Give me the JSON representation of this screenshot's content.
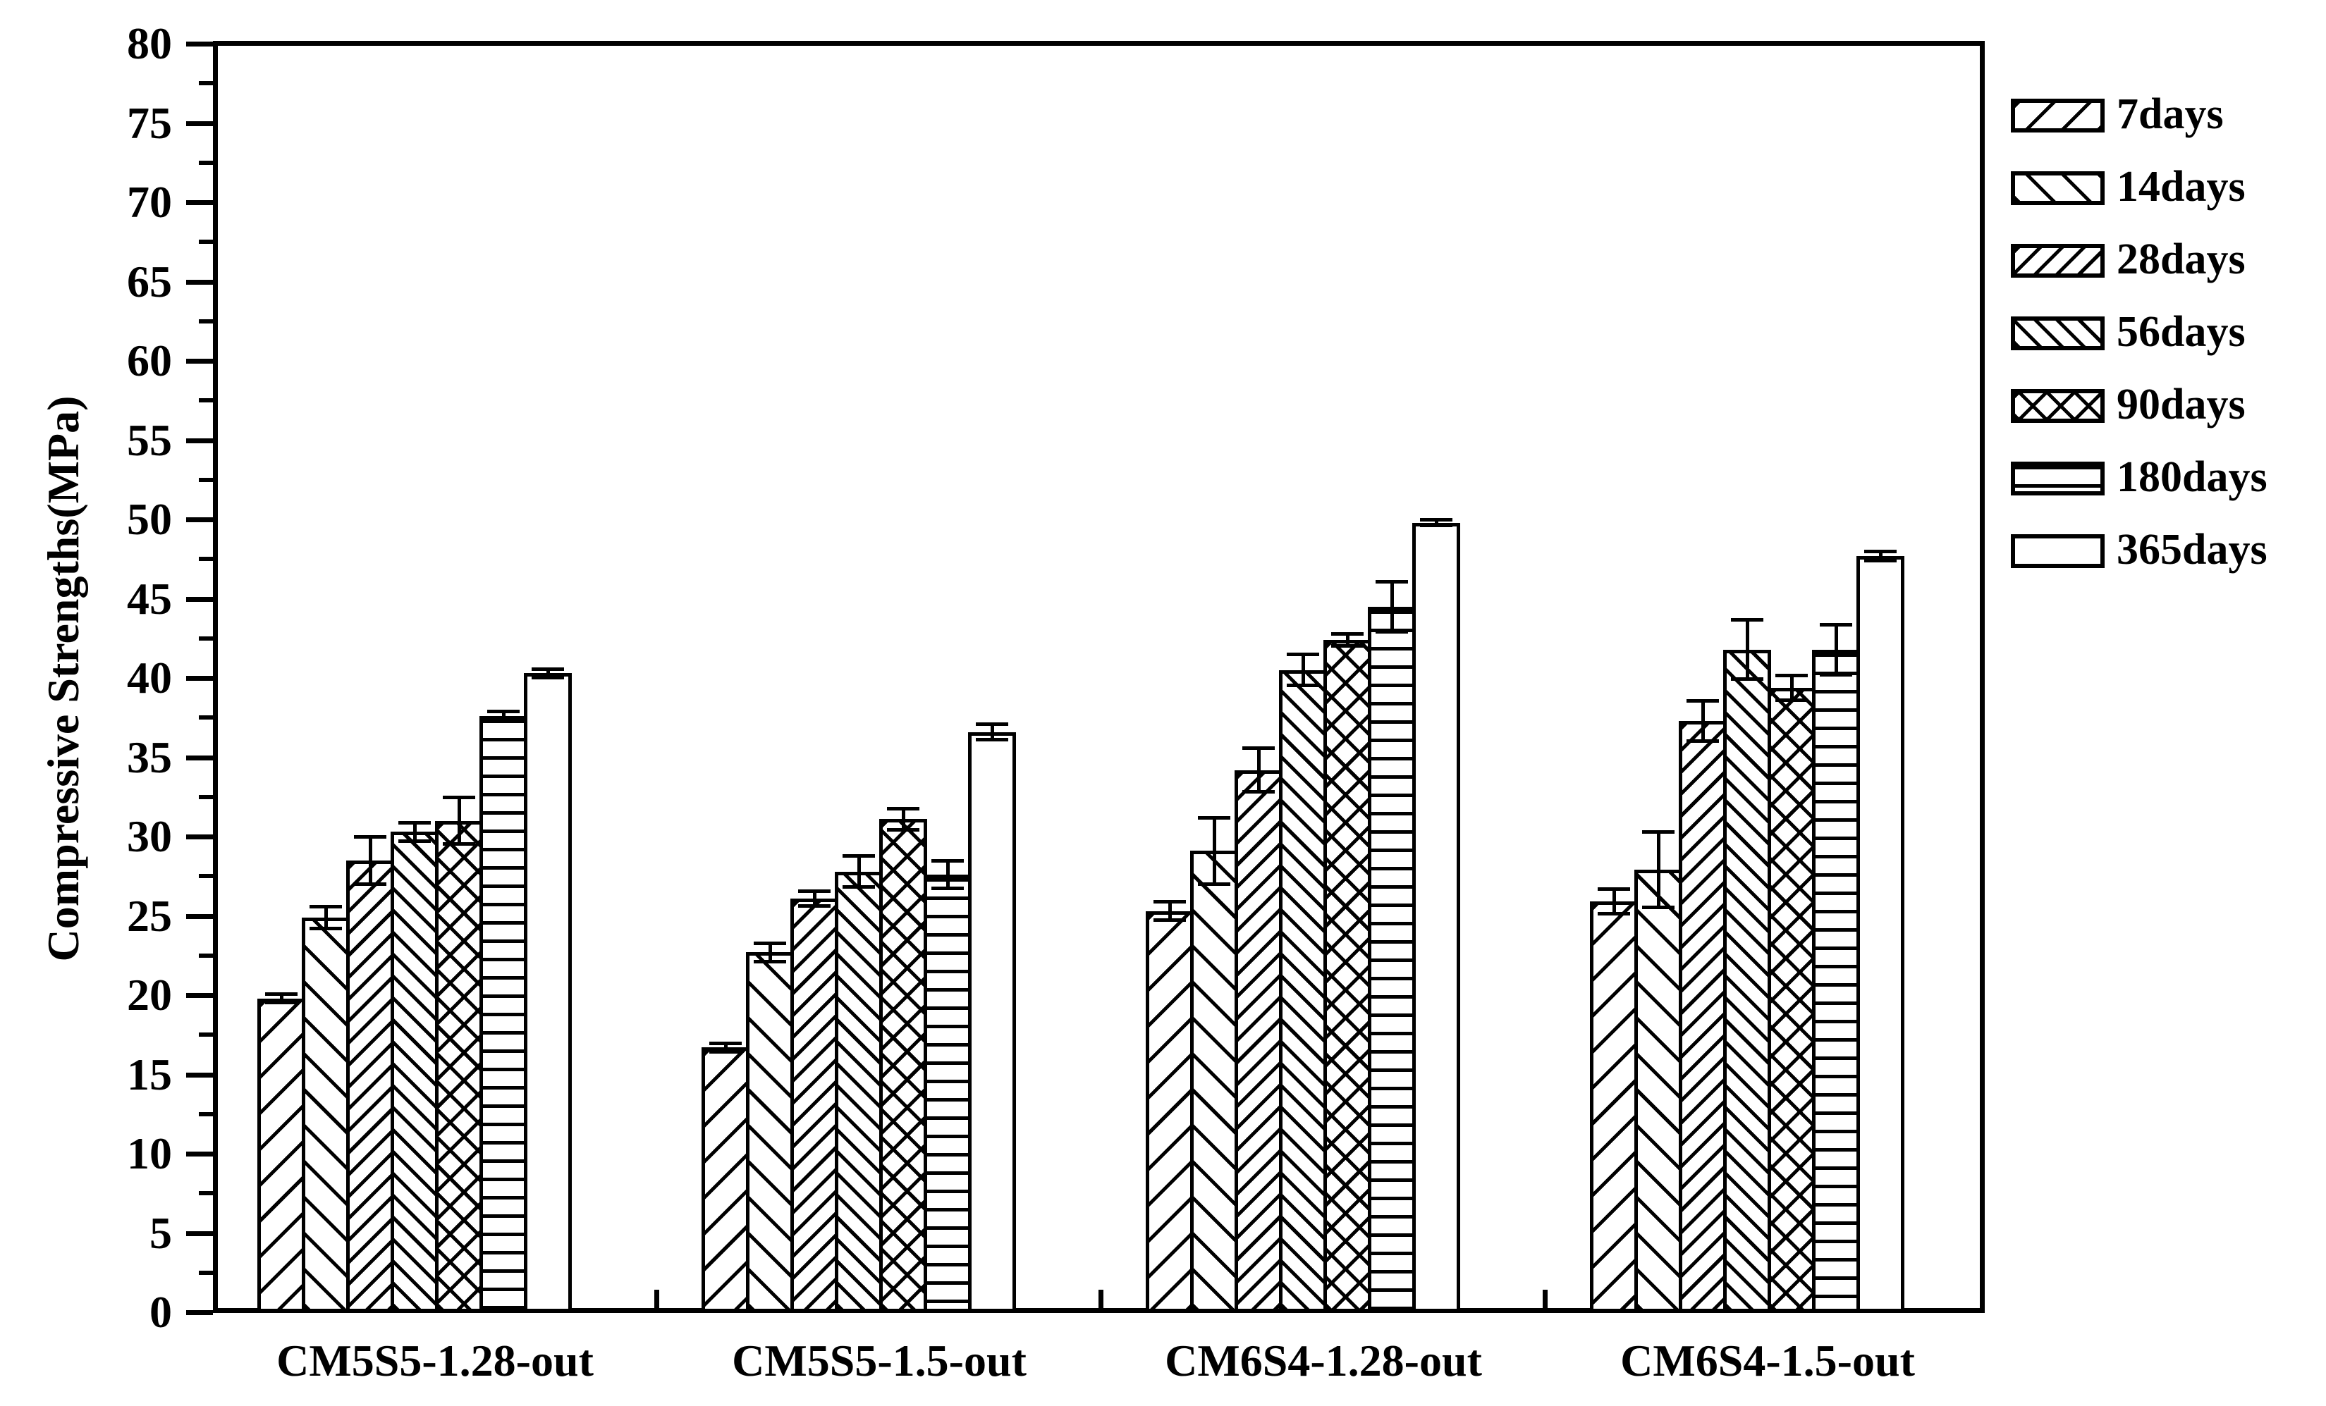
{
  "figure": {
    "background_color": "#ffffff",
    "ink_color": "#000000",
    "title": ""
  },
  "y_axis": {
    "label": "Compressive Strengths(MPa)",
    "min": 0,
    "max": 80,
    "major_step": 5,
    "minor_step": 2.5,
    "tick_labels": [
      "0",
      "5",
      "10",
      "15",
      "20",
      "25",
      "30",
      "35",
      "40",
      "45",
      "50",
      "55",
      "60",
      "65",
      "70",
      "75",
      "80"
    ]
  },
  "x_axis": {
    "categories": [
      "CM5S5-1.28-out",
      "CM5S5-1.5-out",
      "CM6S4-1.28-out",
      "CM6S4-1.5-out"
    ]
  },
  "legend": {
    "position": "outside-right",
    "entries": [
      {
        "label": "7days",
        "pattern": "diagonal-forward-sparse"
      },
      {
        "label": "14days",
        "pattern": "diagonal-back-sparse"
      },
      {
        "label": "28days",
        "pattern": "diagonal-forward-dense"
      },
      {
        "label": "56days",
        "pattern": "diagonal-back-dense"
      },
      {
        "label": "90days",
        "pattern": "cross-diagonal"
      },
      {
        "label": "180days",
        "pattern": "horizontal-lines"
      },
      {
        "label": "365days",
        "pattern": "plain-white"
      }
    ]
  },
  "chart_data": {
    "type": "bar",
    "title": "",
    "xlabel": "",
    "ylabel": "Compressive Strengths(MPa)",
    "ylim": [
      0,
      80
    ],
    "grid": false,
    "error_bars": true,
    "legend_position": "outside-right",
    "categories": [
      "CM5S5-1.28-out",
      "CM5S5-1.5-out",
      "CM6S4-1.28-out",
      "CM6S4-1.5-out"
    ],
    "series": [
      {
        "name": "7days",
        "hatch": "diagonal-forward-sparse",
        "values": [
          19.8,
          16.7,
          25.3,
          25.9
        ],
        "errors": [
          0.3,
          0.3,
          0.6,
          0.8
        ]
      },
      {
        "name": "14days",
        "hatch": "diagonal-back-sparse",
        "values": [
          24.9,
          22.7,
          29.1,
          27.9
        ],
        "errors": [
          0.7,
          0.6,
          2.1,
          2.4
        ]
      },
      {
        "name": "28days",
        "hatch": "diagonal-forward-dense",
        "values": [
          28.5,
          26.1,
          34.2,
          37.3
        ],
        "errors": [
          1.5,
          0.5,
          1.4,
          1.3
        ]
      },
      {
        "name": "56days",
        "hatch": "diagonal-back-dense",
        "values": [
          30.3,
          27.8,
          40.5,
          41.8
        ],
        "errors": [
          0.6,
          1.0,
          1.0,
          1.9
        ]
      },
      {
        "name": "90days",
        "hatch": "cross-diagonal",
        "values": [
          31.0,
          31.1,
          42.4,
          39.4
        ],
        "errors": [
          1.5,
          0.7,
          0.4,
          0.8
        ]
      },
      {
        "name": "180days",
        "hatch": "horizontal-lines",
        "values": [
          37.6,
          27.6,
          44.5,
          41.8
        ],
        "errors": [
          0.3,
          0.9,
          1.6,
          1.6
        ]
      },
      {
        "name": "365days",
        "hatch": "plain-white",
        "values": [
          40.3,
          36.6,
          49.8,
          47.7
        ],
        "errors": [
          0.3,
          0.5,
          0.2,
          0.3
        ]
      }
    ]
  }
}
